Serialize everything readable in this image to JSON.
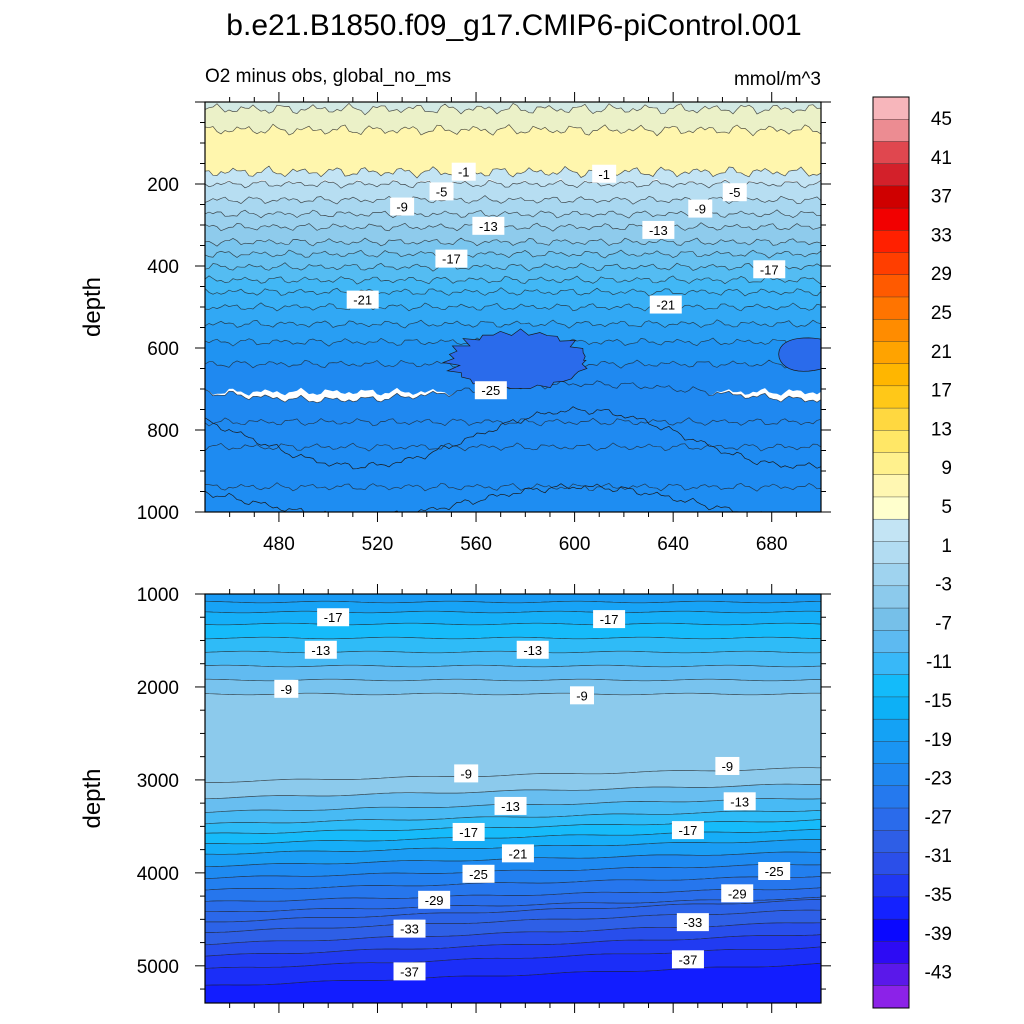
{
  "figure": {
    "title": "b.e21.B1850.f09_g17.CMIP6-piControl.001",
    "left_subtitle": "O2 minus obs, global_no_ms",
    "right_subtitle": "mmol/m^3"
  },
  "chart_data": [
    {
      "type": "contour",
      "panel": "upper",
      "ylabel": "depth",
      "xlabel": "",
      "xlim": [
        450,
        700
      ],
      "ylim": [
        1000,
        0
      ],
      "x_ticks": [
        "480",
        "520",
        "560",
        "600",
        "640",
        "680"
      ],
      "x_tick_values": [
        480,
        520,
        560,
        600,
        640,
        680
      ],
      "y_ticks": [
        "200",
        "400",
        "600",
        "800",
        "1000"
      ],
      "y_tick_values": [
        200,
        400,
        600,
        800,
        1000
      ],
      "contour_interval": 2,
      "contour_labels": [
        {
          "text": "-1",
          "x": 555,
          "y": 170
        },
        {
          "text": "-1",
          "x": 612,
          "y": 175
        },
        {
          "text": "-5",
          "x": 546,
          "y": 218
        },
        {
          "text": "-5",
          "x": 665,
          "y": 220
        },
        {
          "text": "-9",
          "x": 530,
          "y": 255
        },
        {
          "text": "-9",
          "x": 651,
          "y": 260
        },
        {
          "text": "-13",
          "x": 565,
          "y": 302
        },
        {
          "text": "-13",
          "x": 634,
          "y": 312
        },
        {
          "text": "-17",
          "x": 550,
          "y": 382
        },
        {
          "text": "-17",
          "x": 679,
          "y": 408
        },
        {
          "text": "-21",
          "x": 514,
          "y": 482
        },
        {
          "text": "-21",
          "x": 637,
          "y": 494
        },
        {
          "text": "-25",
          "x": 566,
          "y": 703
        }
      ]
    },
    {
      "type": "contour",
      "panel": "lower",
      "ylabel": "depth",
      "xlabel": "",
      "xlim": [
        450,
        700
      ],
      "ylim": [
        5400,
        1000
      ],
      "y_ticks": [
        "1000",
        "2000",
        "3000",
        "4000",
        "5000"
      ],
      "y_tick_values": [
        1000,
        2000,
        3000,
        4000,
        5000
      ],
      "contour_interval": 2,
      "contour_labels": [
        {
          "text": "-17",
          "x": 502,
          "y": 1250
        },
        {
          "text": "-17",
          "x": 614,
          "y": 1270
        },
        {
          "text": "-13",
          "x": 497,
          "y": 1600
        },
        {
          "text": "-13",
          "x": 583,
          "y": 1600
        },
        {
          "text": "-9",
          "x": 483,
          "y": 2020
        },
        {
          "text": "-9",
          "x": 603,
          "y": 2090
        },
        {
          "text": "-9",
          "x": 556,
          "y": 2930
        },
        {
          "text": "-9",
          "x": 662,
          "y": 2850
        },
        {
          "text": "-13",
          "x": 574,
          "y": 3280
        },
        {
          "text": "-13",
          "x": 667,
          "y": 3230
        },
        {
          "text": "-17",
          "x": 557,
          "y": 3560
        },
        {
          "text": "-17",
          "x": 646,
          "y": 3540
        },
        {
          "text": "-21",
          "x": 577,
          "y": 3790
        },
        {
          "text": "-25",
          "x": 561,
          "y": 4010
        },
        {
          "text": "-25",
          "x": 681,
          "y": 3980
        },
        {
          "text": "-29",
          "x": 543,
          "y": 4290
        },
        {
          "text": "-29",
          "x": 666,
          "y": 4220
        },
        {
          "text": "-33",
          "x": 533,
          "y": 4600
        },
        {
          "text": "-33",
          "x": 648,
          "y": 4530
        },
        {
          "text": "-37",
          "x": 533,
          "y": 5060
        },
        {
          "text": "-37",
          "x": 646,
          "y": 4930
        }
      ]
    }
  ],
  "colorbar": {
    "labels": [
      "45",
      "41",
      "37",
      "33",
      "29",
      "25",
      "21",
      "17",
      "13",
      "9",
      "5",
      "1",
      "-3",
      "-7",
      "-11",
      "-15",
      "-19",
      "-23",
      "-27",
      "-31",
      "-35",
      "-39",
      "-43"
    ],
    "colors": [
      "#f7b6bb",
      "#ec8c92",
      "#e0474f",
      "#d3202a",
      "#cf0000",
      "#f20000",
      "#ff2000",
      "#ff3e00",
      "#ff5a00",
      "#ff7400",
      "#ff8c00",
      "#ffa300",
      "#ffb600",
      "#ffc818",
      "#ffd840",
      "#ffe766",
      "#fff18d",
      "#fff7b2",
      "#ffffcd",
      "#c3e4f4",
      "#b2dcf2",
      "#9fd3ef",
      "#8ccaec",
      "#76c0e9",
      "#5dbaf1",
      "#38b8f8",
      "#13bbfa",
      "#0db0f6",
      "#14a2f5",
      "#1a95f3",
      "#1f87f0",
      "#2579ee",
      "#2a6beb",
      "#2e5ee6",
      "#2b4fe9",
      "#2038f3",
      "#1422ff",
      "#0a08ff",
      "#2d0bf4",
      "#5a18ea",
      "#8c22e8"
    ]
  }
}
